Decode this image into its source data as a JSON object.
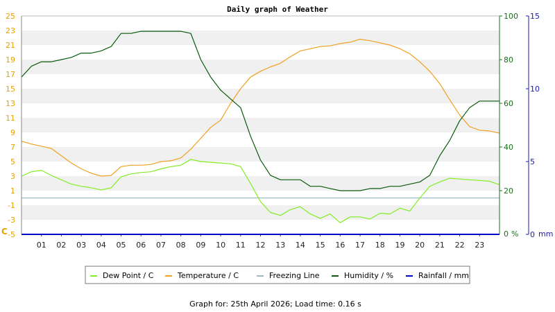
{
  "chart_data": {
    "type": "line",
    "title": "Daily graph of Weather",
    "footer": "Graph for: 25th April 2026; Load time: 0.16 s",
    "colors": {
      "dew": "#80ee22",
      "temp": "#f0a020",
      "freeze": "#9fb8c8",
      "humidity": "#0a5a0a",
      "rain": "#0000cc",
      "band": "#f0f0f0",
      "left_axis": "#e8a000",
      "right_axis": "#1a6e1a",
      "rain_axis": "#1a1ab0"
    },
    "left_axis": {
      "unit": "C",
      "range": [
        -5,
        25
      ],
      "ticks": [
        "-5",
        "-3",
        "-1",
        "1",
        "3",
        "5",
        "7",
        "9",
        "11",
        "13",
        "15",
        "17",
        "19",
        "21",
        "23",
        "25"
      ]
    },
    "right_axis": {
      "unit": "%",
      "range": [
        0,
        100
      ],
      "ticks": [
        "0",
        "20",
        "40",
        "60",
        "80",
        "100"
      ]
    },
    "rain_axis": {
      "unit": "mm",
      "range": [
        0,
        15
      ],
      "ticks": [
        "0",
        "5",
        "10",
        "15"
      ]
    },
    "x_axis": {
      "range": [
        0,
        24
      ],
      "ticks": [
        "01",
        "02",
        "03",
        "04",
        "05",
        "06",
        "07",
        "08",
        "09",
        "10",
        "11",
        "12",
        "13",
        "14",
        "15",
        "16",
        "17",
        "18",
        "19",
        "20",
        "21",
        "22",
        "23"
      ]
    },
    "legend": [
      {
        "key": "dew",
        "label": "Dew Point / C"
      },
      {
        "key": "temp",
        "label": "Temperature / C"
      },
      {
        "key": "freeze",
        "label": "Freezing Line"
      },
      {
        "key": "humidity",
        "label": "Humidity / %"
      },
      {
        "key": "rain",
        "label": "Rainfall / mm"
      }
    ],
    "series": [
      {
        "key": "temp",
        "name": "Temperature / C",
        "axis": "left",
        "x": [
          0,
          0.5,
          1,
          1.5,
          2,
          2.5,
          3,
          3.5,
          4,
          4.5,
          5,
          5.5,
          6,
          6.5,
          7,
          7.5,
          8,
          8.5,
          9,
          9.5,
          10,
          10.5,
          11,
          11.5,
          12,
          12.5,
          13,
          13.5,
          14,
          14.5,
          15,
          15.5,
          16,
          16.5,
          17,
          17.5,
          18,
          18.5,
          19,
          19.5,
          20,
          20.5,
          21,
          21.5,
          22,
          22.5,
          23,
          23.5,
          24
        ],
        "y": [
          7.8,
          7.4,
          7.1,
          6.8,
          5.8,
          4.8,
          4.0,
          3.4,
          3.0,
          3.1,
          4.3,
          4.5,
          4.5,
          4.6,
          5.0,
          5.1,
          5.5,
          6.7,
          8.2,
          9.7,
          10.7,
          13.0,
          15.0,
          16.6,
          17.4,
          18.0,
          18.5,
          19.4,
          20.2,
          20.5,
          20.8,
          20.9,
          21.2,
          21.4,
          21.8,
          21.6,
          21.3,
          21.0,
          20.5,
          19.8,
          18.7,
          17.4,
          15.7,
          13.5,
          11.4,
          9.8,
          9.3,
          9.2,
          8.9
        ]
      },
      {
        "key": "dew",
        "name": "Dew Point / C",
        "axis": "left",
        "x": [
          0,
          0.5,
          1,
          1.5,
          2,
          2.5,
          3,
          3.5,
          4,
          4.5,
          5,
          5.5,
          6,
          6.5,
          7,
          7.5,
          8,
          8.5,
          9,
          9.5,
          10,
          10.5,
          11,
          11.5,
          12,
          12.5,
          13,
          13.5,
          14,
          14.5,
          15,
          15.5,
          16,
          16.5,
          17,
          17.5,
          18,
          18.5,
          19,
          19.5,
          20,
          20.5,
          21,
          21.5,
          22,
          22.5,
          23,
          23.5,
          24
        ],
        "y": [
          3.0,
          3.6,
          3.8,
          3.1,
          2.5,
          1.9,
          1.6,
          1.4,
          1.1,
          1.4,
          2.9,
          3.3,
          3.5,
          3.6,
          4.0,
          4.3,
          4.5,
          5.3,
          5.0,
          4.9,
          4.8,
          4.7,
          4.3,
          2.0,
          -0.5,
          -2.0,
          -2.4,
          -1.6,
          -1.2,
          -2.2,
          -2.8,
          -2.2,
          -3.4,
          -2.6,
          -2.6,
          -2.9,
          -2.1,
          -2.2,
          -1.4,
          -1.8,
          0.0,
          1.6,
          2.2,
          2.7,
          2.6,
          2.5,
          2.4,
          2.3,
          1.8
        ]
      },
      {
        "key": "freeze",
        "name": "Freezing Line",
        "axis": "left",
        "x": [
          0,
          24
        ],
        "y": [
          0,
          0
        ]
      },
      {
        "key": "humidity",
        "name": "Humidity / %",
        "axis": "right",
        "x": [
          0,
          0.5,
          1,
          1.5,
          2,
          2.5,
          3,
          3.5,
          4,
          4.5,
          5,
          5.5,
          6,
          6.5,
          7,
          7.5,
          8,
          8.5,
          9,
          9.5,
          10,
          10.5,
          11,
          11.5,
          12,
          12.5,
          13,
          13.5,
          14,
          14.5,
          15,
          15.5,
          16,
          16.5,
          17,
          17.5,
          18,
          18.5,
          19,
          19.5,
          20,
          20.5,
          21,
          21.5,
          22,
          22.5,
          23,
          23.5,
          24
        ],
        "y": [
          72,
          77,
          79,
          79,
          80,
          81,
          83,
          83,
          84,
          86,
          92,
          92,
          93,
          93,
          93,
          93,
          93,
          92,
          80,
          72,
          66,
          62,
          58,
          45,
          34,
          27,
          25,
          25,
          25,
          22,
          22,
          21,
          20,
          20,
          20,
          21,
          21,
          22,
          22,
          23,
          24,
          27,
          36,
          43,
          52,
          58,
          61,
          61,
          61
        ]
      },
      {
        "key": "rain",
        "name": "Rainfall / mm",
        "axis": "rain",
        "x": [
          0,
          24
        ],
        "y": [
          0,
          0
        ]
      }
    ]
  }
}
